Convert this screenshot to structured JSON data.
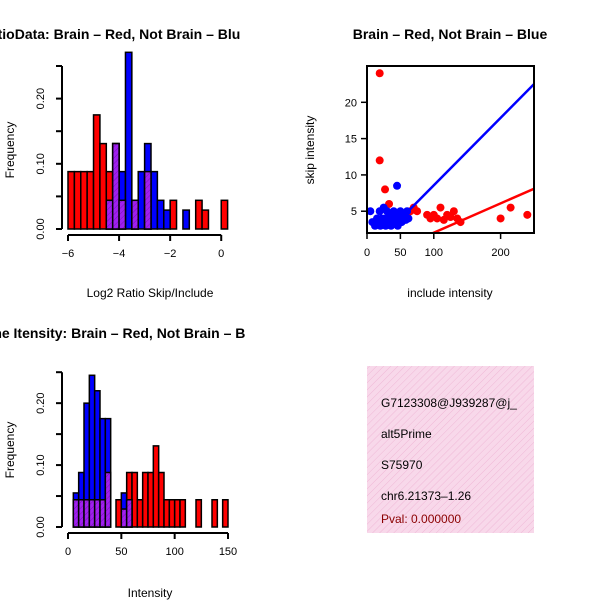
{
  "colors": {
    "red": "#ff0000",
    "blue": "#0000ff",
    "overlap": "#a020f0",
    "info_bg": "#f8d8ea",
    "pval": "#8b0000"
  },
  "chart_data": [
    {
      "id": "ratio_hist",
      "type": "bar",
      "title": "RatioData: Brain – Red, Not Brain – Blu",
      "xlabel": "Log2 Ratio Skip/Include",
      "ylabel": "Frequency",
      "xlim": [
        -6,
        0.5
      ],
      "ylim": [
        0,
        0.25
      ],
      "xticks": [
        "−6",
        "−4",
        "−2",
        "0"
      ],
      "xtick_values": [
        -6,
        -4,
        -2,
        0
      ],
      "yticks": [
        "0.00",
        "0.10",
        "0.20"
      ],
      "ytick_values": [
        0,
        0.1,
        0.2
      ],
      "bin_width": 0.25,
      "series": [
        {
          "name": "Brain",
          "color": "red",
          "bins": [
            {
              "x0": -6.0,
              "v": 0.088
            },
            {
              "x0": -5.75,
              "v": 0.088
            },
            {
              "x0": -5.5,
              "v": 0.088
            },
            {
              "x0": -5.25,
              "v": 0.088
            },
            {
              "x0": -5.0,
              "v": 0.175
            },
            {
              "x0": -4.75,
              "v": 0.131
            },
            {
              "x0": -4.5,
              "v": 0.088
            },
            {
              "x0": -4.25,
              "v": 0.131
            },
            {
              "x0": -4.0,
              "v": 0.044
            },
            {
              "x0": -3.5,
              "v": 0.044
            },
            {
              "x0": -3.0,
              "v": 0.088
            },
            {
              "x0": -2.0,
              "v": 0.044
            },
            {
              "x0": -1.0,
              "v": 0.044
            },
            {
              "x0": -0.75,
              "v": 0.029
            },
            {
              "x0": 0.0,
              "v": 0.044
            }
          ]
        },
        {
          "name": "Not Brain",
          "color": "blue",
          "bins": [
            {
              "x0": -4.5,
              "v": 0.044
            },
            {
              "x0": -4.25,
              "v": 0.131
            },
            {
              "x0": -4.0,
              "v": 0.088
            },
            {
              "x0": -3.75,
              "v": 0.271
            },
            {
              "x0": -3.5,
              "v": 0.044
            },
            {
              "x0": -3.25,
              "v": 0.088
            },
            {
              "x0": -3.0,
              "v": 0.131
            },
            {
              "x0": -2.75,
              "v": 0.088
            },
            {
              "x0": -2.5,
              "v": 0.044
            },
            {
              "x0": -2.25,
              "v": 0.029
            },
            {
              "x0": -1.5,
              "v": 0.029
            }
          ]
        }
      ]
    },
    {
      "id": "skip_scatter",
      "type": "scatter",
      "title": "Brain – Red, Not Brain – Blue",
      "xlabel": "include intensity",
      "ylabel": "skip intensity",
      "xlim": [
        0,
        250
      ],
      "ylim": [
        2,
        25
      ],
      "xticks": [
        "0",
        "50",
        "100",
        "200"
      ],
      "xtick_values": [
        0,
        50,
        100,
        200
      ],
      "yticks": [
        "5",
        "10",
        "15",
        "20"
      ],
      "ytick_values": [
        5,
        10,
        15,
        20
      ],
      "series": [
        {
          "name": "Brain",
          "color": "red",
          "points": [
            [
              19,
              24
            ],
            [
              19,
              12
            ],
            [
              27,
              8
            ],
            [
              33,
              6
            ],
            [
              55,
              4
            ],
            [
              60,
              4.5
            ],
            [
              65,
              5
            ],
            [
              70,
              5.5
            ],
            [
              75,
              5
            ],
            [
              90,
              4.5
            ],
            [
              95,
              4
            ],
            [
              100,
              4.5
            ],
            [
              105,
              4
            ],
            [
              110,
              5.5
            ],
            [
              115,
              3.8
            ],
            [
              120,
              4.5
            ],
            [
              125,
              4.2
            ],
            [
              130,
              5
            ],
            [
              135,
              4
            ],
            [
              140,
              3.5
            ],
            [
              200,
              4
            ],
            [
              215,
              5.5
            ],
            [
              240,
              4.5
            ]
          ],
          "fit": [
            [
              0,
              -2
            ],
            [
              250,
              8.1
            ]
          ]
        },
        {
          "name": "Not Brain",
          "color": "blue",
          "points": [
            [
              5,
              5
            ],
            [
              8,
              3.5
            ],
            [
              12,
              3
            ],
            [
              15,
              4
            ],
            [
              17,
              3.5
            ],
            [
              19,
              5
            ],
            [
              20,
              3
            ],
            [
              22,
              4
            ],
            [
              24,
              3.5
            ],
            [
              25,
              5.5
            ],
            [
              27,
              4
            ],
            [
              28,
              3
            ],
            [
              30,
              5
            ],
            [
              32,
              3.5
            ],
            [
              34,
              4.5
            ],
            [
              36,
              3
            ],
            [
              38,
              4
            ],
            [
              40,
              5
            ],
            [
              42,
              3.5
            ],
            [
              44,
              4.5
            ],
            [
              45,
              8.5
            ],
            [
              46,
              3
            ],
            [
              48,
              4
            ],
            [
              50,
              5
            ],
            [
              52,
              3.5
            ],
            [
              55,
              4.5
            ],
            [
              58,
              3.8
            ],
            [
              60,
              5
            ],
            [
              62,
              4
            ]
          ],
          "fit": [
            [
              40,
              3
            ],
            [
              250,
              22.5
            ]
          ]
        }
      ]
    },
    {
      "id": "intensity_hist",
      "type": "bar",
      "title": "Gene Itensity: Brain – Red, Not Brain – B",
      "xlabel": "Intensity",
      "ylabel": "Frequency",
      "xlim": [
        0,
        150
      ],
      "ylim": [
        0,
        0.26
      ],
      "xticks": [
        "0",
        "50",
        "100",
        "150"
      ],
      "xtick_values": [
        0,
        50,
        100,
        150
      ],
      "yticks": [
        "0.00",
        "0.10",
        "0.20"
      ],
      "ytick_values": [
        0,
        0.1,
        0.2
      ],
      "bin_width": 5,
      "series": [
        {
          "name": "Brain",
          "color": "red",
          "bins": [
            {
              "x0": 5,
              "v": 0.044
            },
            {
              "x0": 10,
              "v": 0.044
            },
            {
              "x0": 15,
              "v": 0.044
            },
            {
              "x0": 20,
              "v": 0.044
            },
            {
              "x0": 25,
              "v": 0.044
            },
            {
              "x0": 30,
              "v": 0.044
            },
            {
              "x0": 35,
              "v": 0.088
            },
            {
              "x0": 45,
              "v": 0.044
            },
            {
              "x0": 50,
              "v": 0.029
            },
            {
              "x0": 55,
              "v": 0.088
            },
            {
              "x0": 60,
              "v": 0.088
            },
            {
              "x0": 65,
              "v": 0.044
            },
            {
              "x0": 70,
              "v": 0.088
            },
            {
              "x0": 75,
              "v": 0.088
            },
            {
              "x0": 80,
              "v": 0.131
            },
            {
              "x0": 85,
              "v": 0.088
            },
            {
              "x0": 90,
              "v": 0.044
            },
            {
              "x0": 95,
              "v": 0.044
            },
            {
              "x0": 100,
              "v": 0.044
            },
            {
              "x0": 105,
              "v": 0.044
            },
            {
              "x0": 120,
              "v": 0.044
            },
            {
              "x0": 135,
              "v": 0.044
            },
            {
              "x0": 145,
              "v": 0.044
            }
          ]
        },
        {
          "name": "Not Brain",
          "color": "blue",
          "bins": [
            {
              "x0": 5,
              "v": 0.055
            },
            {
              "x0": 10,
              "v": 0.088
            },
            {
              "x0": 15,
              "v": 0.2
            },
            {
              "x0": 20,
              "v": 0.245
            },
            {
              "x0": 25,
              "v": 0.22
            },
            {
              "x0": 30,
              "v": 0.175
            },
            {
              "x0": 35,
              "v": 0.175
            },
            {
              "x0": 50,
              "v": 0.055
            },
            {
              "x0": 55,
              "v": 0.044
            }
          ]
        }
      ]
    }
  ],
  "info_panel": {
    "lines": [
      "G7123308@J939287@j_",
      "alt5Prime",
      "S75970",
      "chr6.21373–1.26"
    ],
    "pval": "Pval: 0.000000"
  }
}
